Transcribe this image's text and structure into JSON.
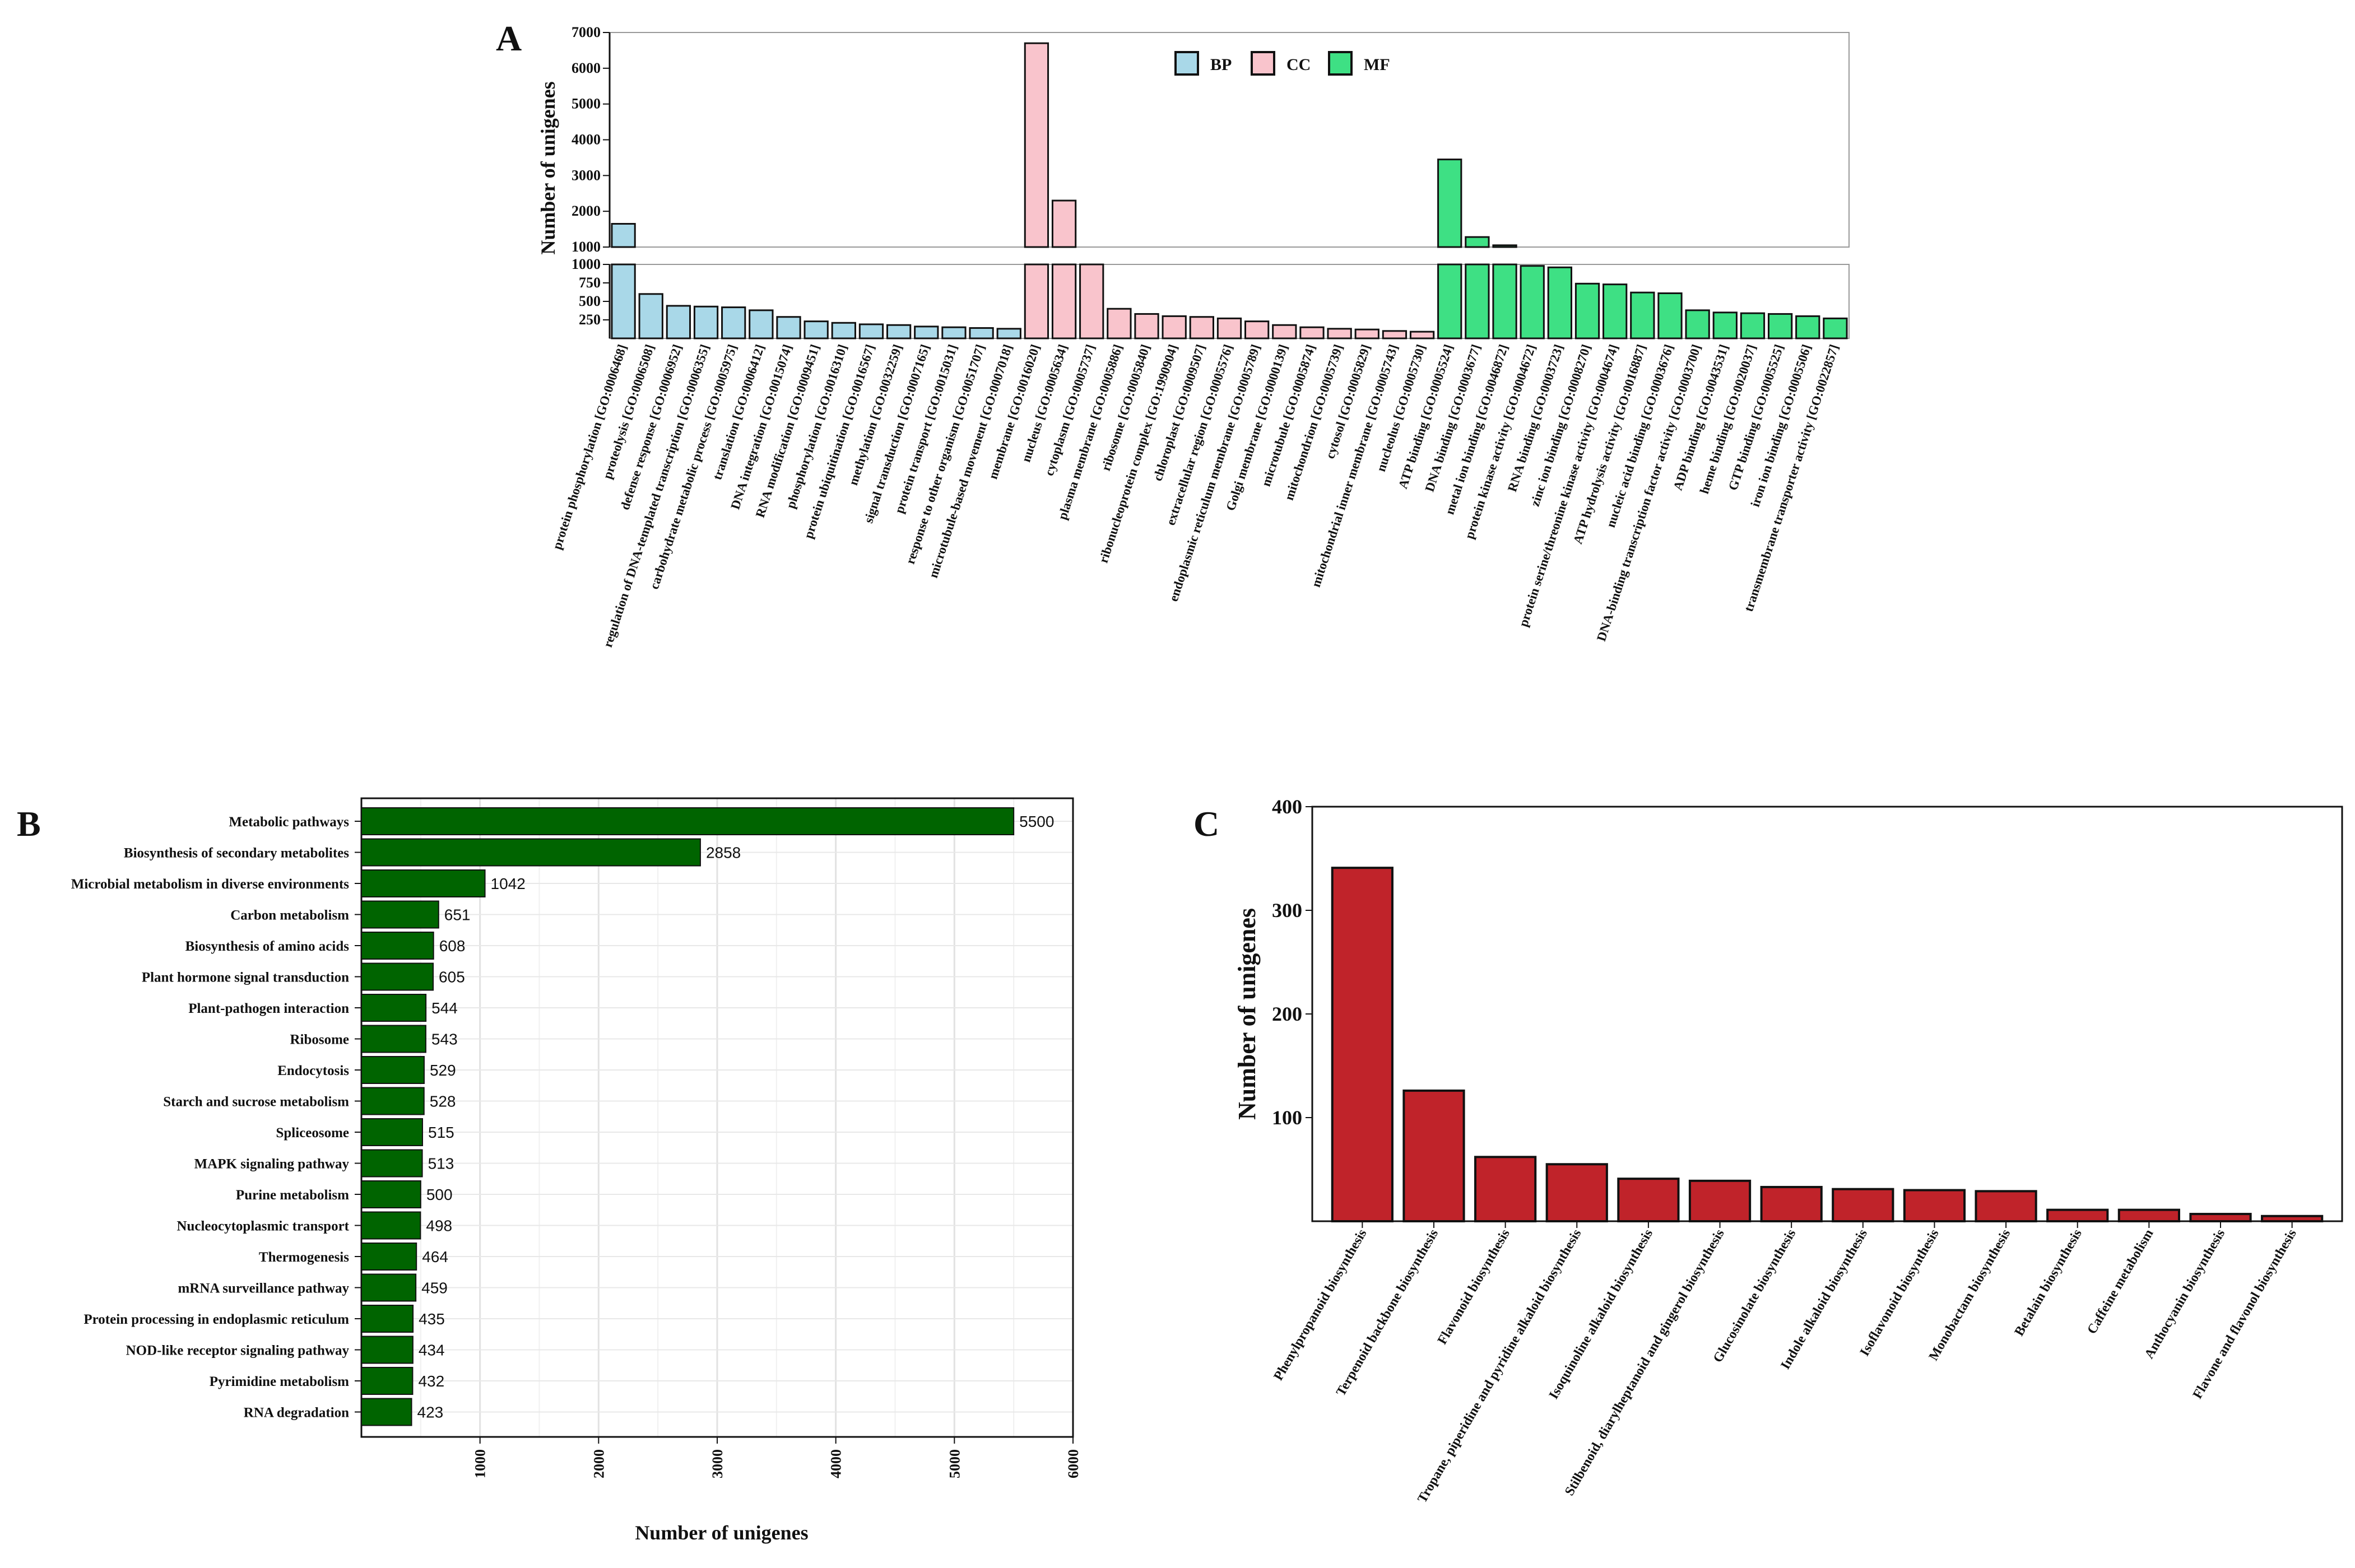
{
  "figure": {
    "panels": [
      {
        "letter": "A"
      },
      {
        "letter": "B"
      },
      {
        "letter": "C"
      }
    ]
  },
  "chart_data": [
    {
      "panel": "A",
      "type": "bar",
      "ylabel": "Number of unigenes",
      "xlabel": "",
      "broken_axis": true,
      "ylim_upper": [
        1000,
        7000
      ],
      "ylim_lower": [
        0,
        1000
      ],
      "yticks_upper": [
        1000,
        2000,
        3000,
        4000,
        5000,
        6000,
        7000
      ],
      "yticks_lower": [
        250,
        500,
        750,
        1000
      ],
      "legend": [
        {
          "name": "BP",
          "color": "#a9d8e8"
        },
        {
          "name": "CC",
          "color": "#f9c4cc"
        },
        {
          "name": "MF",
          "color": "#3ee084"
        }
      ],
      "legend_position": "top-right",
      "categories": [
        "protein phosphorylation [GO:0006468]",
        "proteolysis [GO:0006508]",
        "defense response [GO:0006952]",
        "regulation of DNA-templated transcription [GO:0006355]",
        "carbohydrate metabolic process [GO:0005975]",
        "translation [GO:0006412]",
        "DNA integration [GO:0015074]",
        "RNA modification [GO:0009451]",
        "phosphorylation [GO:0016310]",
        "protein ubiquitination [GO:0016567]",
        "methylation [GO:0032259]",
        "signal transduction [GO:0007165]",
        "protein transport [GO:0015031]",
        "response to other organism [GO:0051707]",
        "microtubule-based movement [GO:0007018]",
        "membrane [GO:0016020]",
        "nucleus [GO:0005634]",
        "cytoplasm [GO:0005737]",
        "plasma membrane [GO:0005886]",
        "ribosome [GO:0005840]",
        "ribonucleoprotein complex [GO:1990904]",
        "chloroplast [GO:0009507]",
        "extracellular region [GO:0005576]",
        "endoplasmic reticulum membrane [GO:0005789]",
        "Golgi membrane [GO:0000139]",
        "microtubule [GO:0005874]",
        "mitochondrion [GO:0005739]",
        "cytosol [GO:0005829]",
        "mitochondrial inner membrane [GO:0005743]",
        "nucleolus [GO:0005730]",
        "ATP binding [GO:0005524]",
        "DNA binding [GO:0003677]",
        "metal ion binding [GO:0046872]",
        "protein kinase activity [GO:0004672]",
        "RNA binding [GO:0003723]",
        "zinc ion binding [GO:0008270]",
        "protein serine/threonine kinase activity [GO:0004674]",
        "ATP hydrolysis activity [GO:0016887]",
        "nucleic acid binding [GO:0003676]",
        "DNA-binding transcription factor activity [GO:0003700]",
        "ADP binding [GO:0043531]",
        "heme binding [GO:0020037]",
        "GTP binding [GO:0005525]",
        "iron ion binding [GO:0005506]",
        "transmembrane transporter activity [GO:0022857]"
      ],
      "groups": [
        "BP",
        "BP",
        "BP",
        "BP",
        "BP",
        "BP",
        "BP",
        "BP",
        "BP",
        "BP",
        "BP",
        "BP",
        "BP",
        "BP",
        "BP",
        "CC",
        "CC",
        "CC",
        "CC",
        "CC",
        "CC",
        "CC",
        "CC",
        "CC",
        "CC",
        "CC",
        "CC",
        "CC",
        "CC",
        "CC",
        "MF",
        "MF",
        "MF",
        "MF",
        "MF",
        "MF",
        "MF",
        "MF",
        "MF",
        "MF",
        "MF",
        "MF",
        "MF",
        "MF",
        "MF"
      ],
      "values": [
        1650,
        600,
        440,
        430,
        420,
        380,
        290,
        230,
        210,
        190,
        180,
        160,
        150,
        140,
        130,
        6700,
        2300,
        1000,
        400,
        330,
        300,
        290,
        270,
        230,
        180,
        150,
        130,
        120,
        100,
        90,
        3450,
        1280,
        1050,
        980,
        960,
        740,
        730,
        620,
        610,
        380,
        350,
        340,
        330,
        300,
        270
      ]
    },
    {
      "panel": "B",
      "type": "bar",
      "orientation": "horizontal",
      "xlabel": "Number of unigenes",
      "ylabel": "",
      "xlim": [
        0,
        6000
      ],
      "xticks": [
        1000,
        2000,
        3000,
        4000,
        5000,
        6000
      ],
      "grid": true,
      "color": "#006400",
      "categories": [
        "Metabolic pathways",
        "Biosynthesis of secondary metabolites",
        "Microbial metabolism in diverse environments",
        "Carbon metabolism",
        "Biosynthesis of amino acids",
        "Plant hormone signal transduction",
        "Plant-pathogen interaction",
        "Ribosome",
        "Endocytosis",
        "Starch and sucrose metabolism",
        "Spliceosome",
        "MAPK signaling pathway",
        "Purine metabolism",
        "Nucleocytoplasmic transport",
        "Thermogenesis",
        "mRNA surveillance pathway",
        "Protein processing in endoplasmic reticulum",
        "NOD-like receptor signaling pathway",
        "Pyrimidine metabolism",
        "RNA degradation"
      ],
      "values": [
        5500,
        2858,
        1042,
        651,
        608,
        605,
        544,
        543,
        529,
        528,
        515,
        513,
        500,
        498,
        464,
        459,
        435,
        434,
        432,
        423
      ],
      "value_labels": [
        "5500",
        "2858",
        "1042",
        "651",
        "608",
        "605",
        "544",
        "543",
        "529",
        "528",
        "515",
        "513",
        "500",
        "498",
        "464",
        "459",
        "435",
        "434",
        "432",
        "423"
      ]
    },
    {
      "panel": "C",
      "type": "bar",
      "ylabel": "Number of unigenes",
      "xlabel": "",
      "ylim": [
        0,
        400
      ],
      "yticks": [
        100,
        200,
        300,
        400
      ],
      "color": "#c0232a",
      "categories": [
        "Phenylpropanoid biosynthesis",
        "Terpenoid backbone biosynthesis",
        "Flavonoid biosynthesis",
        "Tropane, piperidine and pyridine alkaloid biosynthesis",
        "Isoquinoline alkaloid biosynthesis",
        "Stilbenoid, diarylheptanoid and gingerol biosynthesis",
        "Glucosinolate biosynthesis",
        "Indole alkaloid biosynthesis",
        "Isoflavonoid biosynthesis",
        "Monobactam biosynthesis",
        "Betalain biosynthesis",
        "Caffeine metabolism",
        "Anthocyanin biosynthesis",
        "Flavone and flavonol biosynthesis"
      ],
      "values": [
        341,
        126,
        62,
        55,
        41,
        39,
        33,
        31,
        30,
        29,
        11,
        11,
        7,
        5
      ]
    }
  ]
}
